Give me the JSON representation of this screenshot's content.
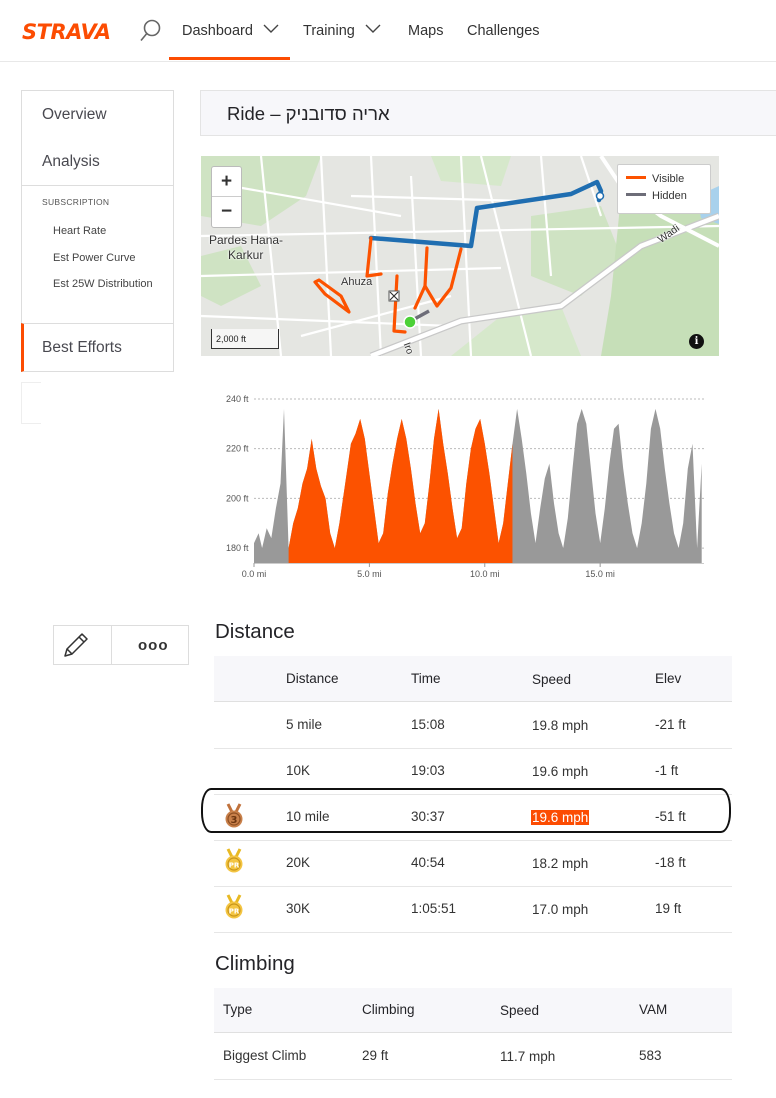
{
  "brand": {
    "logo_text": "STRAVA",
    "accent": "#fc4c02"
  },
  "nav": {
    "items": [
      {
        "label": "Dashboard",
        "has_dropdown": true,
        "active": true
      },
      {
        "label": "Training",
        "has_dropdown": true
      },
      {
        "label": "Maps"
      },
      {
        "label": "Challenges"
      }
    ]
  },
  "sidebar": {
    "overview": "Overview",
    "analysis": "Analysis",
    "subscription_heading": "SUBSCRIPTION",
    "sub_items": [
      "Heart Rate",
      "Est Power Curve",
      "Est 25W Distribution"
    ],
    "best_efforts": "Best Efforts"
  },
  "activity": {
    "title": "אריה סדובניק – Ride"
  },
  "map": {
    "legend_visible": "Visible",
    "legend_hidden": "Hidden",
    "visible_color": "#fc5200",
    "hidden_color": "#6d6d78",
    "route_color": "#1f6eb1",
    "zoom_in": "+",
    "zoom_out": "−",
    "scale": "2,000 ft",
    "labels": {
      "town_line1": "Pardes Hana-",
      "town_line2": "Karkur",
      "ahuza": "Ahuza",
      "wadi": "Wadi",
      "ir": "Iro"
    }
  },
  "chart_data": {
    "type": "area",
    "xlabel": "",
    "ylabel": "",
    "x_ticks": [
      "0.0 mi",
      "5.0 mi",
      "10.0 mi",
      "15.0 mi"
    ],
    "x_tick_values": [
      0,
      5,
      10,
      15
    ],
    "y_ticks": [
      "180 ft",
      "200 ft",
      "220 ft",
      "240 ft"
    ],
    "y_tick_values": [
      180,
      200,
      220,
      240
    ],
    "xlim": [
      0,
      19.5
    ],
    "ylim": [
      174,
      242
    ],
    "grid": true,
    "visible_range_mi": [
      1.5,
      11.2
    ],
    "series": [
      {
        "color_visible": "#fc5200",
        "color_hidden": "#999999",
        "x": [
          0,
          0.2,
          0.35,
          0.55,
          0.75,
          0.95,
          1.15,
          1.3,
          1.5,
          1.7,
          1.9,
          2.1,
          2.3,
          2.5,
          2.7,
          2.9,
          3.1,
          3.3,
          3.5,
          3.7,
          3.95,
          4.2,
          4.4,
          4.6,
          4.8,
          5.0,
          5.2,
          5.4,
          5.6,
          5.8,
          6.0,
          6.2,
          6.4,
          6.6,
          6.8,
          7.0,
          7.2,
          7.4,
          7.6,
          7.8,
          8.0,
          8.2,
          8.4,
          8.6,
          8.8,
          9.0,
          9.2,
          9.4,
          9.6,
          9.8,
          10.0,
          10.2,
          10.4,
          10.6,
          10.8,
          11.0,
          11.2,
          11.4,
          11.6,
          11.8,
          12.0,
          12.2,
          12.4,
          12.6,
          12.8,
          13.0,
          13.2,
          13.4,
          13.6,
          13.8,
          14.0,
          14.2,
          14.4,
          14.6,
          14.8,
          15.0,
          15.2,
          15.4,
          15.6,
          15.8,
          16.0,
          16.2,
          16.4,
          16.6,
          16.8,
          17.0,
          17.2,
          17.4,
          17.6,
          17.8,
          18.0,
          18.2,
          18.4,
          18.6,
          18.8,
          19.0,
          19.2,
          19.4
        ],
        "y": [
          182,
          186,
          180,
          188,
          184,
          196,
          206,
          236,
          180,
          190,
          196,
          206,
          212,
          224,
          212,
          205,
          200,
          186,
          180,
          190,
          206,
          222,
          226,
          232,
          224,
          210,
          196,
          182,
          186,
          202,
          214,
          224,
          232,
          224,
          212,
          198,
          186,
          190,
          206,
          224,
          236,
          222,
          210,
          196,
          184,
          188,
          206,
          220,
          228,
          232,
          222,
          210,
          196,
          182,
          190,
          206,
          222,
          236,
          224,
          210,
          194,
          182,
          196,
          208,
          214,
          198,
          186,
          180,
          192,
          212,
          230,
          236,
          230,
          212,
          194,
          182,
          196,
          214,
          228,
          230,
          212,
          198,
          186,
          180,
          190,
          206,
          228,
          236,
          228,
          212,
          198,
          186,
          180,
          190,
          212,
          222,
          180,
          214
        ]
      }
    ]
  },
  "actions": {
    "edit_icon": "pencil-icon",
    "more_label": "ooo"
  },
  "distance": {
    "title": "Distance",
    "headers": [
      "Distance",
      "Time",
      "Speed",
      "Elev"
    ],
    "rows": [
      {
        "medal": "",
        "distance": "5 mile",
        "time": "15:08",
        "speed": "19.8 mph",
        "elev": "-21 ft"
      },
      {
        "medal": "",
        "distance": "10K",
        "time": "19:03",
        "speed": "19.6 mph",
        "elev": "-1 ft"
      },
      {
        "medal": "bronze-3",
        "medal_text": "3",
        "distance": "10 mile",
        "time": "30:37",
        "speed": "19.6 mph",
        "elev": "-51 ft",
        "highlight_speed": true
      },
      {
        "medal": "gold-pr",
        "medal_text": "PR",
        "distance": "20K",
        "time": "40:54",
        "speed": "18.2 mph",
        "elev": "-18 ft"
      },
      {
        "medal": "gold-pr",
        "medal_text": "PR",
        "distance": "30K",
        "time": "1:05:51",
        "speed": "17.0 mph",
        "elev": "19 ft"
      }
    ]
  },
  "climbing": {
    "title": "Climbing",
    "headers": [
      "Type",
      "Climbing",
      "Speed",
      "VAM"
    ],
    "rows": [
      {
        "type": "Biggest Climb",
        "climbing": "29 ft",
        "speed": "11.7 mph",
        "vam": "583"
      }
    ]
  }
}
